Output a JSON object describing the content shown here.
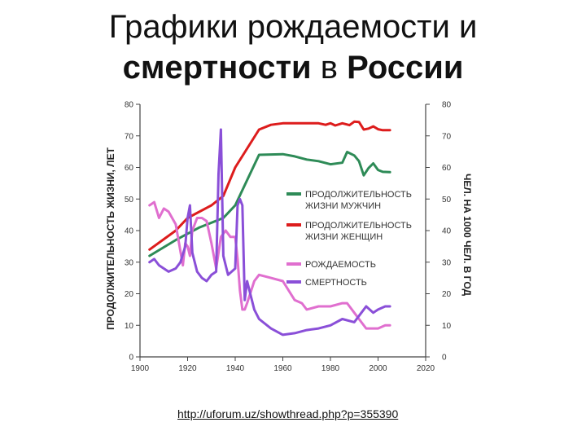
{
  "title": {
    "line1": "Графики рождаемости и",
    "line2_bold1": "смертности",
    "line2_normal": " в ",
    "line2_bold2": "России"
  },
  "source_link": "http://uforum.uz/showthread.php?p=355390",
  "chart_data": {
    "type": "line",
    "xlim": [
      1900,
      2020
    ],
    "x_ticks": [
      "1900",
      "1920",
      "1940",
      "1960",
      "1980",
      "2000",
      "2020"
    ],
    "ylim_left": [
      0,
      80
    ],
    "ylim_right": [
      0,
      80
    ],
    "y_ticks_left": [
      "0",
      "10",
      "20",
      "30",
      "40",
      "50",
      "60",
      "70",
      "80"
    ],
    "y_ticks_right": [
      "0",
      "10",
      "20",
      "30",
      "40",
      "50",
      "60",
      "70",
      "80"
    ],
    "ylabel_left": "ПРОДОЛЖИТЕЛЬНОСТЬ ЖИЗНИ, ЛЕТ",
    "ylabel_right": "ЧЕЛ. НА 1000 ЧЕЛ. В ГОД",
    "legend_placement": "center-right",
    "series": [
      {
        "name": "ПРОДОЛЖИТЕЛЬНОСТЬ ЖИЗНИ МУЖЧИН",
        "name_lines": [
          "ПРОДОЛЖИТЕЛЬНОСТЬ",
          "ЖИЗНИ МУЖЧИН"
        ],
        "axis": "left",
        "color": "#2e8b57",
        "x": [
          1904,
          1915,
          1925,
          1935,
          1940,
          1950,
          1960,
          1965,
          1970,
          1975,
          1980,
          1985,
          1987,
          1990,
          1992,
          1994,
          1996,
          1998,
          2000,
          2002,
          2005
        ],
        "y": [
          32,
          37,
          41,
          44,
          48,
          64,
          64.2,
          63.5,
          62.5,
          62,
          61,
          61.5,
          64.9,
          63.8,
          62.0,
          57.5,
          59.8,
          61.3,
          59.2,
          58.6,
          58.5
        ]
      },
      {
        "name": "ПРОДОЛЖИТЕЛЬНОСТЬ ЖИЗНИ ЖЕНЩИН",
        "name_lines": [
          "ПРОДОЛЖИТЕЛЬНОСТЬ",
          "ЖИЗНИ ЖЕНЩИН"
        ],
        "axis": "left",
        "color": "#dd1c1c",
        "x": [
          1904,
          1915,
          1920,
          1930,
          1935,
          1940,
          1950,
          1955,
          1960,
          1965,
          1970,
          1975,
          1978,
          1980,
          1982,
          1985,
          1988,
          1990,
          1992,
          1994,
          1996,
          1998,
          2000,
          2002,
          2005
        ],
        "y": [
          34,
          40,
          44,
          48,
          51,
          60,
          72,
          73.5,
          74,
          74,
          74,
          74,
          73.5,
          74,
          73.3,
          74,
          73.4,
          74.5,
          74.4,
          72,
          72.3,
          73,
          72.1,
          71.8,
          71.8
        ]
      },
      {
        "name": "РОЖДАЕМОСТЬ",
        "axis": "right",
        "color": "#e06fcf",
        "x": [
          1904,
          1906,
          1908,
          1910,
          1912,
          1915,
          1918,
          1919,
          1920,
          1921,
          1922,
          1924,
          1926,
          1928,
          1930,
          1932,
          1934,
          1936,
          1938,
          1940,
          1941,
          1942,
          1943,
          1944,
          1945,
          1948,
          1950,
          1955,
          1960,
          1965,
          1968,
          1970,
          1975,
          1980,
          1985,
          1987,
          1990,
          1993,
          1995,
          1998,
          2000,
          2003,
          2005
        ],
        "y": [
          48,
          49,
          44,
          47,
          46,
          42,
          29,
          36,
          35,
          32,
          40,
          44,
          44,
          43,
          36,
          28,
          38,
          40,
          38,
          38,
          31,
          21,
          15,
          15,
          17,
          24,
          26,
          25,
          24,
          18,
          17,
          15,
          16,
          16,
          17,
          17,
          14,
          11,
          9,
          9,
          9,
          10,
          10
        ]
      },
      {
        "name": "СМЕРТНОСТЬ",
        "axis": "right",
        "color": "#8a4fd8",
        "x": [
          1904,
          1906,
          1908,
          1912,
          1915,
          1917,
          1919,
          1920,
          1921,
          1922,
          1924,
          1926,
          1928,
          1930,
          1932,
          1933,
          1934,
          1935,
          1937,
          1940,
          1941,
          1942,
          1943,
          1944,
          1945,
          1948,
          1950,
          1955,
          1960,
          1965,
          1970,
          1975,
          1980,
          1985,
          1990,
          1993,
          1995,
          1998,
          2000,
          2003,
          2005
        ],
        "y": [
          30,
          31,
          29,
          27,
          28,
          30,
          35,
          44,
          48,
          33,
          27,
          25,
          24,
          26,
          27,
          58,
          72,
          32,
          26,
          28,
          48,
          50,
          48,
          18,
          24,
          15,
          12,
          9,
          7,
          7.5,
          8.5,
          9,
          10,
          12,
          11,
          14,
          16,
          14,
          15,
          16,
          16
        ]
      }
    ]
  }
}
